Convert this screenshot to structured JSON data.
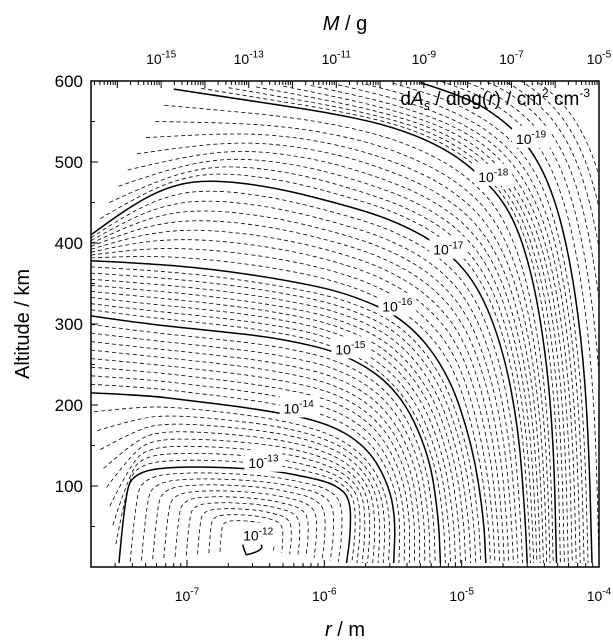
{
  "chart_data": {
    "type": "contour",
    "title": "",
    "annotation": {
      "parts": [
        "d",
        "A",
        "s",
        " / dlog(",
        "r",
        ") / cm",
        "2",
        " cm",
        "-3"
      ]
    },
    "xlabel": {
      "var": "r",
      "unit": " / m"
    },
    "x2label": {
      "var": "M",
      "unit": " / g"
    },
    "ylabel": "Altitude / km",
    "x_scale": "log",
    "x_range": [
      2e-08,
      0.0001
    ],
    "x_ticks": [
      {
        "value": 1e-07,
        "base": "10",
        "exp": "-7"
      },
      {
        "value": 1e-06,
        "base": "10",
        "exp": "-6"
      },
      {
        "value": 1e-05,
        "base": "10",
        "exp": "-5"
      },
      {
        "value": 0.0001,
        "base": "10",
        "exp": "-4"
      }
    ],
    "x2_scale": "log",
    "x2_range": [
      2.5e-17,
      1e-05
    ],
    "x2_ticks": [
      {
        "value": 1e-15,
        "base": "10",
        "exp": "-15"
      },
      {
        "value": 1e-13,
        "base": "10",
        "exp": "-13"
      },
      {
        "value": 1e-11,
        "base": "10",
        "exp": "-11"
      },
      {
        "value": 1e-09,
        "base": "10",
        "exp": "-9"
      },
      {
        "value": 1e-07,
        "base": "10",
        "exp": "-7"
      },
      {
        "value": 1e-05,
        "base": "10",
        "exp": "-5"
      }
    ],
    "y_range": [
      0,
      600
    ],
    "y_ticks": [
      100,
      200,
      300,
      400,
      500,
      600
    ],
    "grid": false,
    "contours": [
      {
        "level": "10^-12",
        "base": "10",
        "exp": "-12",
        "label_at": [
          3.3e-07,
          35
        ],
        "path": [
          [
            2.7e-07,
            15
          ],
          [
            3.6e-07,
            20
          ],
          [
            3.4e-07,
            32
          ],
          [
            2.8e-07,
            40
          ],
          [
            2.5e-07,
            30
          ],
          [
            2.7e-07,
            15
          ]
        ]
      },
      {
        "level": "10^-13",
        "base": "10",
        "exp": "-13",
        "label_at": [
          3.6e-07,
          125
        ],
        "path": [
          [
            3.2e-08,
            5
          ],
          [
            3.5e-08,
            80
          ],
          [
            4e-08,
            118
          ],
          [
            1e-07,
            125
          ],
          [
            4e-07,
            120
          ],
          [
            8e-07,
            110
          ],
          [
            1.2e-06,
            102
          ],
          [
            1.55e-06,
            85
          ],
          [
            1.55e-06,
            40
          ],
          [
            1.45e-06,
            5
          ]
        ]
      },
      {
        "level": "10^-14",
        "base": "10",
        "exp": "-14",
        "label_at": [
          6.5e-07,
          192
        ],
        "path": [
          [
            2e-08,
            215
          ],
          [
            5e-08,
            212
          ],
          [
            1e-07,
            206
          ],
          [
            3e-07,
            196
          ],
          [
            1e-06,
            180
          ],
          [
            2e-06,
            150
          ],
          [
            2.9e-06,
            105
          ],
          [
            3.3e-06,
            60
          ],
          [
            3.2e-06,
            5
          ]
        ]
      },
      {
        "level": "10^-15",
        "base": "10",
        "exp": "-15",
        "label_at": [
          1.55e-06,
          265
        ],
        "path": [
          [
            2e-08,
            310
          ],
          [
            5e-08,
            300
          ],
          [
            1.5e-07,
            292
          ],
          [
            5e-07,
            282
          ],
          [
            1.5e-06,
            262
          ],
          [
            3.5e-06,
            218
          ],
          [
            5.8e-06,
            140
          ],
          [
            6.8e-06,
            60
          ],
          [
            7e-06,
            5
          ]
        ]
      },
      {
        "level": "10^-16",
        "base": "10",
        "exp": "-16",
        "label_at": [
          3.4e-06,
          318
        ],
        "path": [
          [
            2e-08,
            378
          ],
          [
            5e-08,
            375
          ],
          [
            1.5e-07,
            368
          ],
          [
            5e-07,
            355
          ],
          [
            1.5e-06,
            338
          ],
          [
            4e-06,
            305
          ],
          [
            8e-06,
            240
          ],
          [
            1.2e-05,
            150
          ],
          [
            1.45e-05,
            60
          ],
          [
            1.5e-05,
            5
          ]
        ]
      },
      {
        "level": "10^-17",
        "base": "10",
        "exp": "-17",
        "label_at": [
          8e-06,
          388
        ],
        "path": [
          [
            2e-08,
            410
          ],
          [
            4e-08,
            448
          ],
          [
            8e-08,
            472
          ],
          [
            1.5e-07,
            478
          ],
          [
            4e-07,
            470
          ],
          [
            1.2e-06,
            450
          ],
          [
            3e-06,
            430
          ],
          [
            7e-06,
            398
          ],
          [
            1.3e-05,
            350
          ],
          [
            2e-05,
            270
          ],
          [
            2.6e-05,
            170
          ],
          [
            2.9e-05,
            60
          ],
          [
            3e-05,
            5
          ]
        ]
      },
      {
        "level": "10^-18",
        "base": "10",
        "exp": "-18",
        "label_at": [
          1.7e-05,
          478
        ],
        "path": [
          [
            8e-08,
            590
          ],
          [
            3e-07,
            575
          ],
          [
            1e-06,
            562
          ],
          [
            3e-06,
            545
          ],
          [
            7e-06,
            520
          ],
          [
            1.3e-05,
            488
          ],
          [
            2.3e-05,
            440
          ],
          [
            3.3e-05,
            360
          ],
          [
            4.2e-05,
            250
          ],
          [
            4.7e-05,
            140
          ],
          [
            4.9e-05,
            5
          ]
        ]
      },
      {
        "level": "10^-19",
        "base": "10",
        "exp": "-19",
        "label_at": [
          3.2e-05,
          525
        ],
        "path": [
          [
            5e-06,
            598
          ],
          [
            1.1e-05,
            580
          ],
          [
            2e-05,
            552
          ],
          [
            3.1e-05,
            520
          ],
          [
            4.5e-05,
            468
          ],
          [
            6e-05,
            390
          ],
          [
            7.5e-05,
            280
          ],
          [
            8.4e-05,
            160
          ],
          [
            8.9e-05,
            5
          ]
        ]
      }
    ]
  }
}
